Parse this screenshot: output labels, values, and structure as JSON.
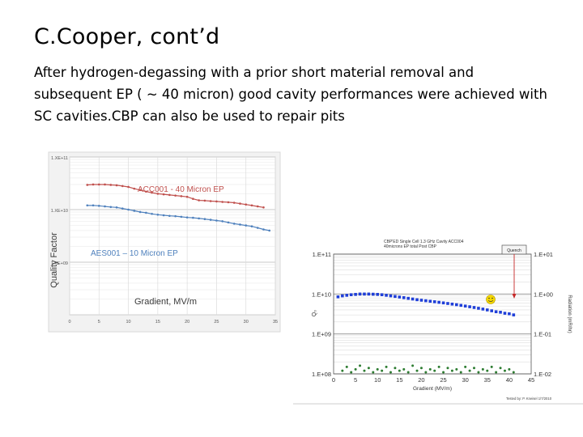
{
  "slide": {
    "title": "C.Cooper, cont’d",
    "body_lines": [
      "After hydrogen-degassing with a prior short material removal and",
      "subsequent EP ( ~ 40 micron) good cavity performances were achieved with",
      "SC cavities.CBP can also be used to repair pits"
    ]
  },
  "colors": {
    "acc_series": "#c0504d",
    "aes_series": "#4f81bd",
    "label_text": "#3a3a3a",
    "annot_red": "#c0504d",
    "annot_blue": "#4f81bd",
    "q0_series": "#1f3fd8",
    "rad_series": "#2e7d32",
    "chart1_bg": "#f2f2f2",
    "smiley": "#f5d800"
  },
  "chart_data": [
    {
      "type": "line",
      "ylabel": "Quality Factor",
      "xlabel": "Gradient, MV/m",
      "yscale": "log",
      "ylim": [
        100000000.0,
        100000000000.0
      ],
      "xlim": [
        0,
        35
      ],
      "x_ticks": [
        "0",
        "5",
        "10",
        "15",
        "20",
        "25",
        "30",
        "35"
      ],
      "y_ticks": [
        "1.XE+11",
        "1.XE+10",
        "1.XE+09"
      ],
      "grid": true,
      "annotations": [
        "ACC001 - 40 Micron EP",
        "AES001 – 10 Micron EP"
      ],
      "series": [
        {
          "name": "ACC001 - 40 Micron EP",
          "x": [
            3,
            4,
            5,
            6,
            7,
            8,
            9,
            10,
            11,
            12,
            13,
            14,
            15,
            16,
            17,
            18,
            19,
            20,
            21,
            22,
            23,
            24,
            25,
            26,
            27,
            28,
            29,
            30,
            31,
            32,
            33
          ],
          "y": [
            29500000000.0,
            30000000000.0,
            30000000000.0,
            30000000000.0,
            29500000000.0,
            29000000000.0,
            28000000000.0,
            27000000000.0,
            25000000000.0,
            23500000000.0,
            22000000000.0,
            21000000000.0,
            20000000000.0,
            19500000000.0,
            19000000000.0,
            18500000000.0,
            18000000000.0,
            17500000000.0,
            16000000000.0,
            15000000000.0,
            14800000000.0,
            14500000000.0,
            14300000000.0,
            14000000000.0,
            13800000000.0,
            13500000000.0,
            13000000000.0,
            12500000000.0,
            12000000000.0,
            11500000000.0,
            11000000000.0
          ]
        },
        {
          "name": "AES001 – 10 Micron EP",
          "x": [
            3,
            4,
            5,
            6,
            7,
            8,
            9,
            10,
            11,
            12,
            13,
            14,
            15,
            16,
            17,
            18,
            19,
            20,
            21,
            22,
            23,
            24,
            25,
            26,
            27,
            28,
            29,
            30,
            31,
            32,
            33,
            34
          ],
          "y": [
            12000000000.0,
            12000000000.0,
            11800000000.0,
            11500000000.0,
            11200000000.0,
            11000000000.0,
            10500000000.0,
            10000000000.0,
            9500000000.0,
            9000000000.0,
            8700000000.0,
            8300000000.0,
            8000000000.0,
            7800000000.0,
            7600000000.0,
            7500000000.0,
            7300000000.0,
            7100000000.0,
            7000000000.0,
            6800000000.0,
            6600000000.0,
            6400000000.0,
            6200000000.0,
            6000000000.0,
            5700000000.0,
            5400000000.0,
            5200000000.0,
            5000000000.0,
            4800000000.0,
            4500000000.0,
            4200000000.0,
            4000000000.0
          ]
        }
      ]
    },
    {
      "type": "scatter",
      "title": "CBP'ED Single Cell 1.3 GHz Cavity ACC004\n40microns EP total Post CBP",
      "xlabel": "Gradient (MV/m)",
      "ylabel": "Q₀",
      "y2label": "Radiation (mR/hr)",
      "yscale": "log",
      "ylim": [
        100000000.0,
        100000000000.0
      ],
      "y2lim": [
        0.01,
        10
      ],
      "xlim": [
        0,
        45
      ],
      "x_ticks": [
        "0",
        "5",
        "10",
        "15",
        "20",
        "25",
        "30",
        "35",
        "40",
        "45"
      ],
      "y_ticks": [
        "1.E+11",
        "1.E+10",
        "1.E+09",
        "1.E+08"
      ],
      "y2_ticks": [
        "1.E+01",
        "1.E+00",
        "1.E-01",
        "1.E-02"
      ],
      "legend": [
        "Quench"
      ],
      "footer": "Tested by: P. Kneisel 1/7/2010",
      "series": [
        {
          "name": "Q₀",
          "axis": "left",
          "x": [
            1,
            2,
            3,
            4,
            5,
            6,
            7,
            8,
            9,
            10,
            11,
            12,
            13,
            14,
            15,
            16,
            17,
            18,
            19,
            20,
            21,
            22,
            23,
            24,
            25,
            26,
            27,
            28,
            29,
            30,
            31,
            32,
            33,
            34,
            35,
            36,
            37,
            38,
            39,
            40,
            41
          ],
          "y": [
            8500000000.0,
            9000000000.0,
            9300000000.0,
            9600000000.0,
            9800000000.0,
            10000000000.0,
            10000000000.0,
            10000000000.0,
            9900000000.0,
            9800000000.0,
            9600000000.0,
            9300000000.0,
            9000000000.0,
            8700000000.0,
            8400000000.0,
            8100000000.0,
            7800000000.0,
            7500000000.0,
            7200000000.0,
            7000000000.0,
            6800000000.0,
            6600000000.0,
            6400000000.0,
            6200000000.0,
            6000000000.0,
            5800000000.0,
            5600000000.0,
            5400000000.0,
            5200000000.0,
            5000000000.0,
            4800000000.0,
            4600000000.0,
            4400000000.0,
            4200000000.0,
            4000000000.0,
            3800000000.0,
            3600000000.0,
            3500000000.0,
            3300000000.0,
            3200000000.0,
            3000000000.0
          ]
        },
        {
          "name": "Radiation",
          "axis": "right",
          "x": [
            2,
            3,
            4,
            5,
            6,
            7,
            8,
            9,
            10,
            11,
            12,
            13,
            14,
            15,
            16,
            17,
            18,
            19,
            20,
            21,
            22,
            23,
            24,
            25,
            26,
            27,
            28,
            29,
            30,
            31,
            32,
            33,
            34,
            35,
            36,
            37,
            38,
            39,
            40,
            41
          ],
          "y": [
            0.012,
            0.015,
            0.011,
            0.013,
            0.016,
            0.012,
            0.014,
            0.011,
            0.013,
            0.012,
            0.015,
            0.011,
            0.014,
            0.012,
            0.013,
            0.011,
            0.016,
            0.012,
            0.014,
            0.011,
            0.013,
            0.012,
            0.015,
            0.011,
            0.014,
            0.012,
            0.013,
            0.011,
            0.015,
            0.012,
            0.014,
            0.011,
            0.013,
            0.012,
            0.015,
            0.011,
            0.014,
            0.012,
            0.013,
            0.011
          ]
        }
      ]
    }
  ]
}
